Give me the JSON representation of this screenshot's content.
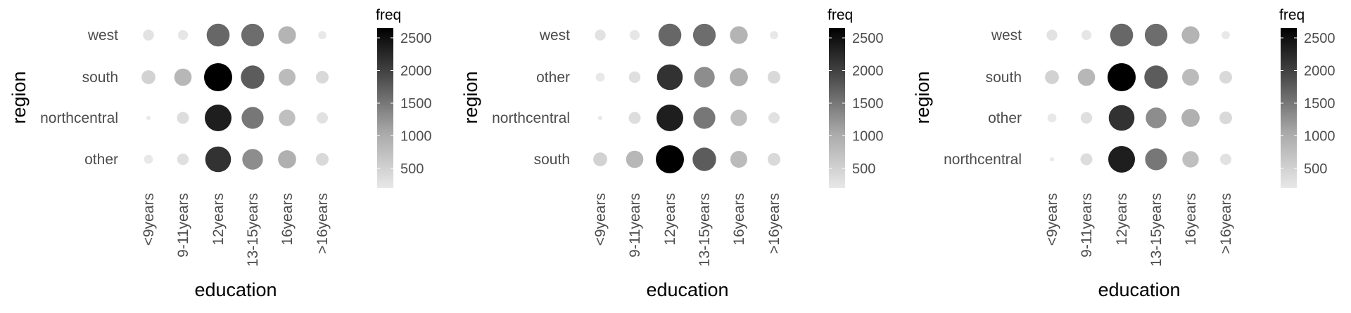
{
  "chart_data": [
    {
      "type": "scatter",
      "xlabel": "education",
      "ylabel": "region",
      "categories_x": [
        "<9years",
        "9-11years",
        "12years",
        "13-15years",
        "16years",
        ">16years"
      ],
      "categories_y": [
        "west",
        "south",
        "northcentral",
        "other"
      ],
      "legend": {
        "title": "freq",
        "ticks": [
          500,
          1000,
          1500,
          2000,
          2500
        ],
        "range": [
          200,
          2650
        ],
        "position": "right"
      },
      "grid": false,
      "values": [
        [
          280,
          230,
          1650,
          1600,
          900,
          150
        ],
        [
          500,
          850,
          2650,
          1750,
          800,
          400
        ],
        [
          80,
          350,
          2350,
          1500,
          750,
          300
        ],
        [
          180,
          320,
          2150,
          1300,
          950,
          400
        ]
      ]
    },
    {
      "type": "scatter",
      "xlabel": "education",
      "ylabel": "region",
      "categories_x": [
        "<9years",
        "9-11years",
        "12years",
        "13-15years",
        "16years",
        ">16years"
      ],
      "categories_y": [
        "west",
        "other",
        "northcentral",
        "south"
      ],
      "legend": {
        "title": "freq",
        "ticks": [
          500,
          1000,
          1500,
          2000,
          2500
        ],
        "range": [
          200,
          2650
        ],
        "position": "right"
      },
      "grid": false,
      "values": [
        [
          280,
          230,
          1650,
          1600,
          900,
          150
        ],
        [
          180,
          320,
          2150,
          1300,
          950,
          400
        ],
        [
          80,
          350,
          2350,
          1500,
          750,
          300
        ],
        [
          500,
          850,
          2650,
          1750,
          800,
          400
        ]
      ]
    },
    {
      "type": "scatter",
      "xlabel": "education",
      "ylabel": "region",
      "categories_x": [
        "<9years",
        "9-11years",
        "12years",
        "13-15years",
        "16years",
        ">16years"
      ],
      "categories_y": [
        "west",
        "south",
        "other",
        "northcentral"
      ],
      "legend": {
        "title": "freq",
        "ticks": [
          500,
          1000,
          1500,
          2000,
          2500
        ],
        "range": [
          200,
          2650
        ],
        "position": "right"
      },
      "grid": false,
      "values": [
        [
          280,
          230,
          1650,
          1600,
          900,
          150
        ],
        [
          500,
          850,
          2650,
          1750,
          800,
          400
        ],
        [
          180,
          320,
          2150,
          1300,
          950,
          400
        ],
        [
          80,
          350,
          2350,
          1500,
          750,
          300
        ]
      ]
    }
  ]
}
